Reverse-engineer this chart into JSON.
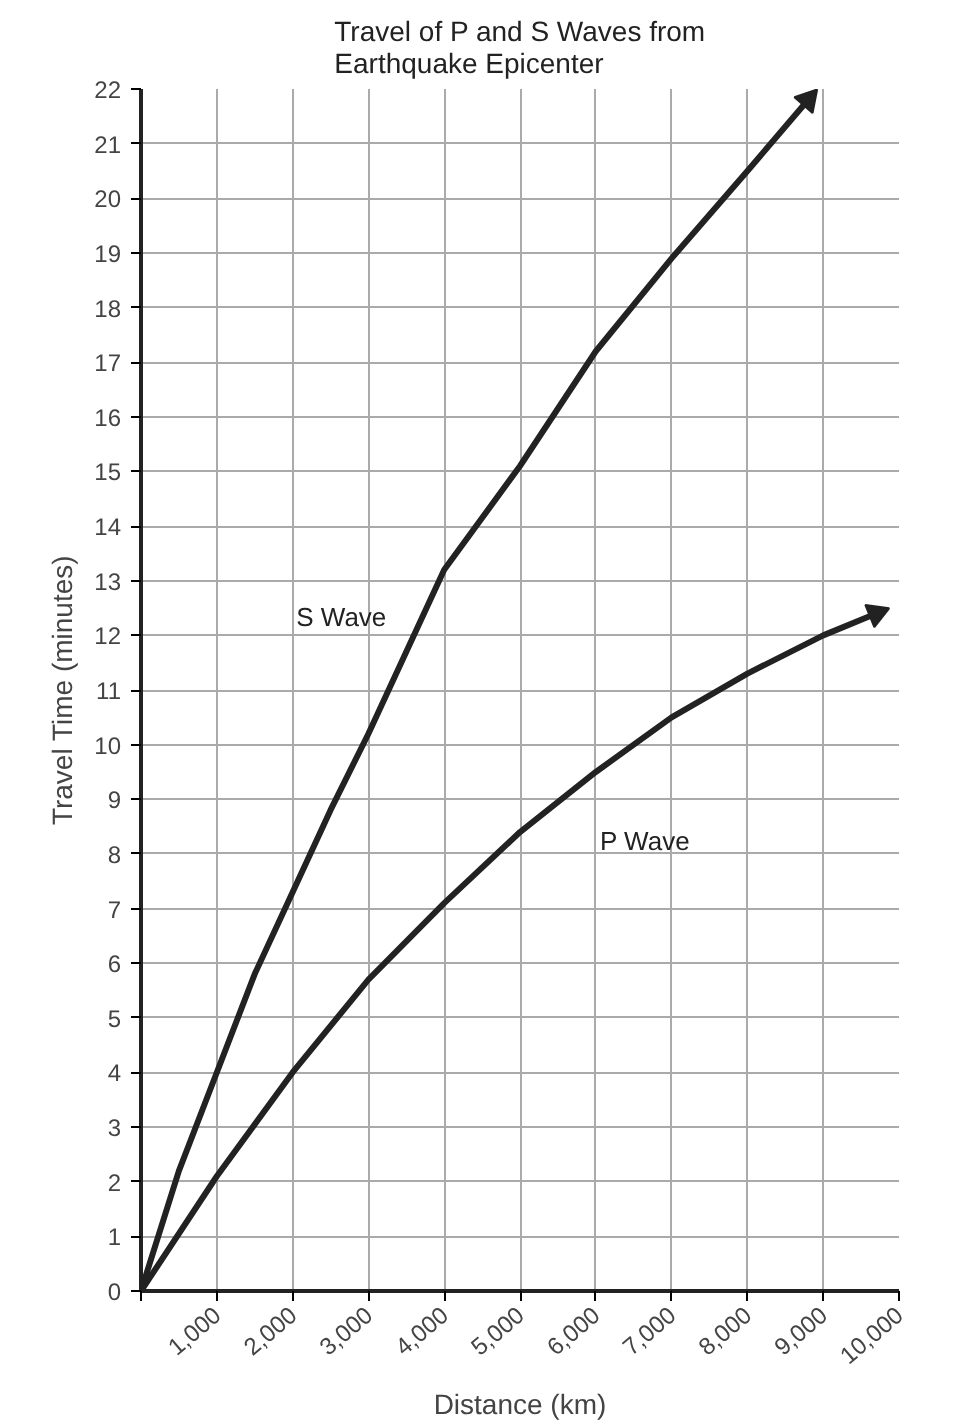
{
  "chart_data": {
    "type": "line",
    "title": "Travel of P and S Waves from Earthquake Epicenter",
    "xlabel": "Distance (km)",
    "ylabel": "Travel Time (minutes)",
    "series": [
      {
        "name": "S Wave",
        "color": "#222222",
        "x": [
          0,
          500,
          1000,
          1500,
          2000,
          2500,
          3000,
          3500,
          4000,
          5000,
          6000,
          7000,
          8000,
          8800
        ],
        "values": [
          0,
          2.2,
          4,
          5.8,
          7.3,
          8.8,
          10.2,
          11.7,
          13.2,
          15.1,
          17.2,
          18.9,
          20.5,
          21.8
        ]
      },
      {
        "name": "P Wave",
        "color": "#222222",
        "x": [
          0,
          1000,
          2000,
          3000,
          4000,
          5000,
          6000,
          7000,
          8000,
          9000,
          9700
        ],
        "values": [
          0,
          2.1,
          4,
          5.7,
          7.1,
          8.4,
          9.5,
          10.5,
          11.3,
          12,
          12.4
        ]
      }
    ],
    "xlim": [
      0,
      10000
    ],
    "ylim": [
      0,
      22
    ],
    "xticks": [
      {
        "value": 0,
        "label": null
      },
      {
        "value": 1000,
        "label": "1,000"
      },
      {
        "value": 2000,
        "label": "2,000"
      },
      {
        "value": 3000,
        "label": "3,000"
      },
      {
        "value": 4000,
        "label": "4,000"
      },
      {
        "value": 5000,
        "label": "5,000"
      },
      {
        "value": 6000,
        "label": "6,000"
      },
      {
        "value": 7000,
        "label": "7,000"
      },
      {
        "value": 8000,
        "label": "8,000"
      },
      {
        "value": 9000,
        "label": "9,000"
      },
      {
        "value": 10000,
        "label": "10,000"
      }
    ],
    "yticks": [
      0,
      1,
      2,
      3,
      4,
      5,
      6,
      7,
      8,
      9,
      10,
      11,
      12,
      13,
      14,
      15,
      16,
      17,
      18,
      19,
      20,
      21,
      22
    ],
    "grid": true,
    "legend": false,
    "marker": "none",
    "line_style": "solid"
  }
}
